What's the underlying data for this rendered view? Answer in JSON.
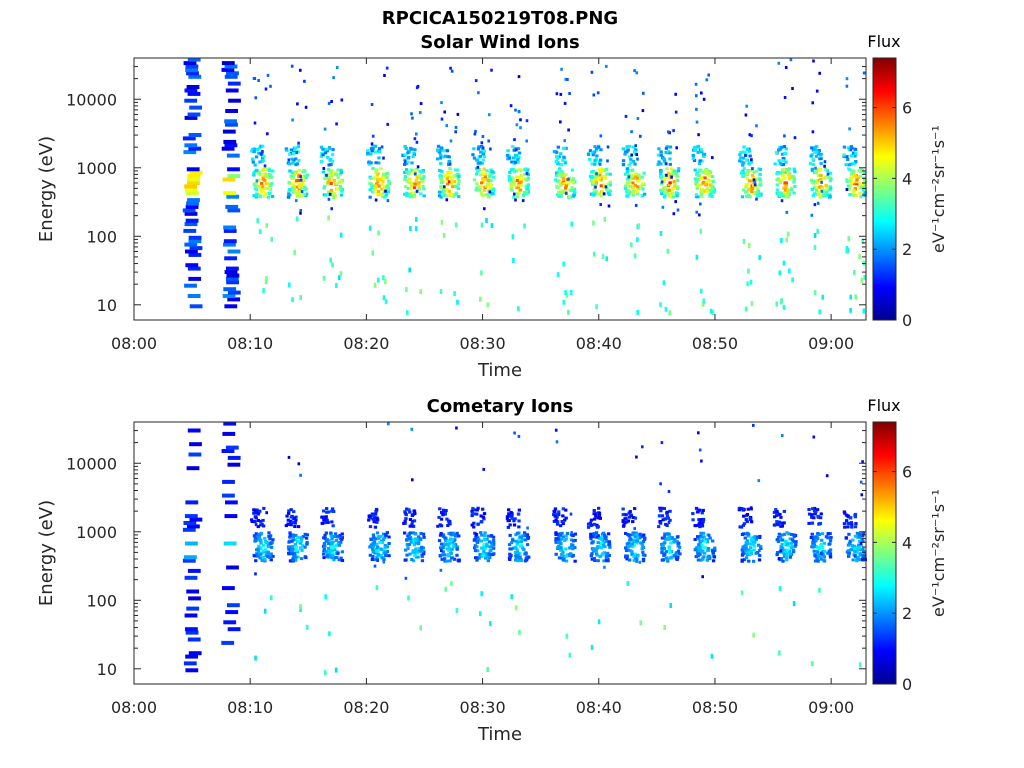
{
  "figure_title": "RPCICA150219T08.PNG",
  "colors": {
    "axis": "#262626",
    "colormap": "jet",
    "cmap_stops": [
      "#00008f",
      "#0000ff",
      "#00ffff",
      "#ffff00",
      "#ff0000",
      "#800000"
    ]
  },
  "chart_data": [
    {
      "type": "heatmap",
      "title": "Solar Wind Ions",
      "xlabel": "Time",
      "ylabel": "Energy (eV)",
      "y_scale": "log",
      "xlim": [
        "08:00",
        "09:03"
      ],
      "ylim": [
        6,
        40000
      ],
      "x_ticks": [
        "08:00",
        "08:10",
        "08:20",
        "08:30",
        "08:40",
        "08:50",
        "09:00"
      ],
      "y_ticks": [
        10,
        100,
        1000,
        10000
      ],
      "y_tick_labels": [
        "10",
        "100",
        "1000",
        "10000"
      ],
      "colorbar": {
        "title": "Flux",
        "label": "eV⁻¹cm⁻²sr⁻¹s⁻¹",
        "range": [
          0,
          7.4
        ],
        "ticks": [
          0,
          2,
          4,
          6
        ]
      },
      "sweep_times": [
        "08:11",
        "08:14",
        "08:17",
        "08:21",
        "08:24",
        "08:27",
        "08:30",
        "08:33",
        "08:37",
        "08:40",
        "08:43",
        "08:46",
        "08:49",
        "08:53",
        "08:56",
        "08:59",
        "09:02"
      ],
      "peak_energy_eV": 600,
      "peak_flux": 6.0,
      "secondary_energy_eV": 1500,
      "secondary_flux": 2.8
    },
    {
      "type": "heatmap",
      "title": "Cometary Ions",
      "xlabel": "Time",
      "ylabel": "Energy (eV)",
      "y_scale": "log",
      "xlim": [
        "08:00",
        "09:03"
      ],
      "ylim": [
        6,
        40000
      ],
      "x_ticks": [
        "08:00",
        "08:10",
        "08:20",
        "08:30",
        "08:40",
        "08:50",
        "09:00"
      ],
      "y_ticks": [
        10,
        100,
        1000,
        10000
      ],
      "y_tick_labels": [
        "10",
        "100",
        "1000",
        "10000"
      ],
      "colorbar": {
        "title": "Flux",
        "label": "eV⁻¹cm⁻²sr⁻¹s⁻¹",
        "range": [
          0,
          7.4
        ],
        "ticks": [
          0,
          2,
          4,
          6
        ]
      },
      "sweep_times": [
        "08:11",
        "08:14",
        "08:17",
        "08:21",
        "08:24",
        "08:27",
        "08:30",
        "08:33",
        "08:37",
        "08:40",
        "08:43",
        "08:46",
        "08:49",
        "08:53",
        "08:56",
        "08:59",
        "09:02"
      ],
      "peak_energy_eV": 600,
      "peak_flux": 3.0,
      "secondary_energy_eV": 1600,
      "secondary_flux": 1.3
    }
  ]
}
